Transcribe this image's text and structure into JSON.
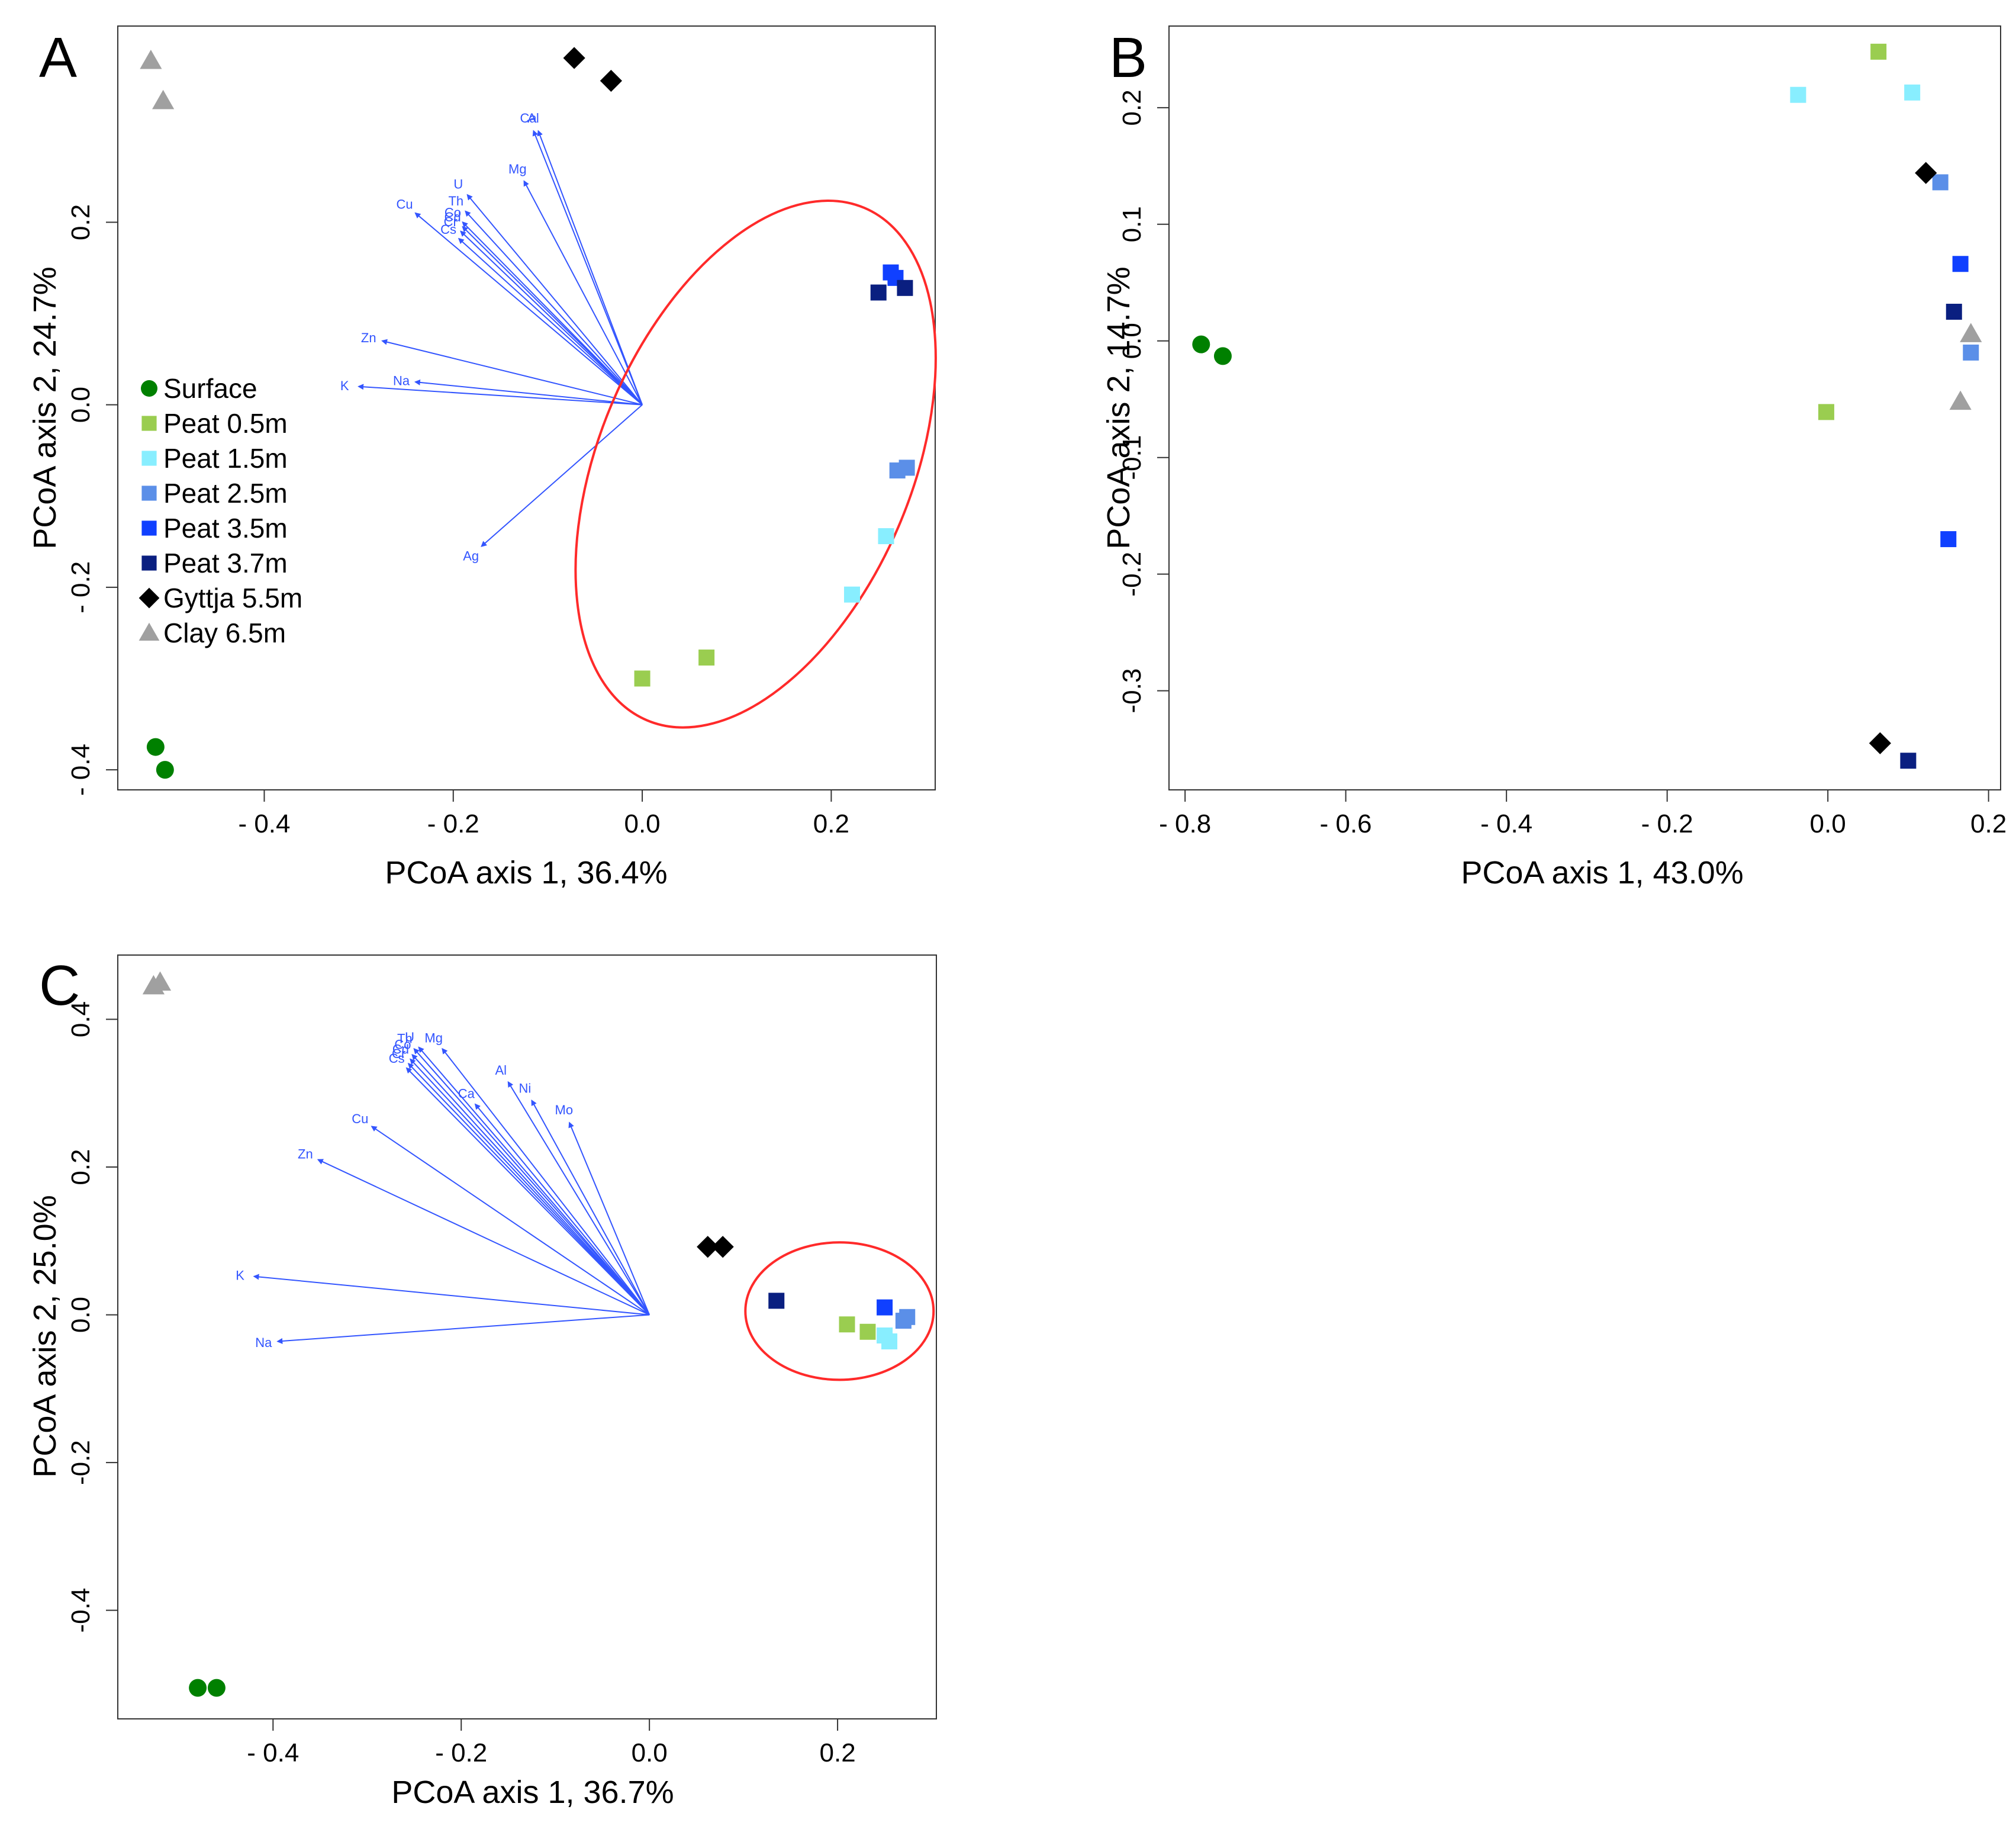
{
  "colors": {
    "Surface": "#008000",
    "Peat 0.5m": "#9acd50",
    "Peat 1.5m": "#88eeff",
    "Peat 2.5m": "#5b8fe8",
    "Peat 3.5m": "#1040ff",
    "Peat 3.7m": "#0a1f80",
    "Gyttja 5.5m": "#000000",
    "Clay 6.5m": "#a0a0a0",
    "vector": "#3355ff",
    "ellipse": "#ff2a2a",
    "axis": "#333333"
  },
  "legend": {
    "entries": [
      {
        "label": "Surface",
        "shape": "circle"
      },
      {
        "label": "Peat 0.5m",
        "shape": "square"
      },
      {
        "label": "Peat 1.5m",
        "shape": "square"
      },
      {
        "label": "Peat 2.5m",
        "shape": "square"
      },
      {
        "label": "Peat 3.5m",
        "shape": "square"
      },
      {
        "label": "Peat 3.7m",
        "shape": "square"
      },
      {
        "label": "Gyttja 5.5m",
        "shape": "diamond"
      },
      {
        "label": "Clay 6.5m",
        "shape": "triangle"
      }
    ]
  },
  "chart_data": [
    {
      "panel": "A",
      "type": "scatter",
      "xlabel": "PCoA axis 1, 36.4%",
      "ylabel": "PCoA axis 2, 24.7%",
      "xlim": [
        -0.555,
        0.31
      ],
      "ylim": [
        -0.422,
        0.415
      ],
      "xticks": [
        {
          "v": -0.4,
          "label": "- 0.4"
        },
        {
          "v": -0.2,
          "label": "- 0.2"
        },
        {
          "v": 0.0,
          "label": "0.0"
        },
        {
          "v": 0.2,
          "label": "0.2"
        }
      ],
      "yticks": [
        {
          "v": -0.4,
          "label": "- 0.4"
        },
        {
          "v": -0.2,
          "label": "- 0.2"
        },
        {
          "v": 0.0,
          "label": "0.0"
        },
        {
          "v": 0.2,
          "label": "0.2"
        }
      ],
      "points": [
        {
          "group": "Surface",
          "x": -0.515,
          "y": -0.375
        },
        {
          "group": "Surface",
          "x": -0.505,
          "y": -0.4
        },
        {
          "group": "Peat 0.5m",
          "x": 0.0,
          "y": -0.3
        },
        {
          "group": "Peat 0.5m",
          "x": 0.068,
          "y": -0.277
        },
        {
          "group": "Peat 1.5m",
          "x": 0.222,
          "y": -0.208
        },
        {
          "group": "Peat 1.5m",
          "x": 0.258,
          "y": -0.144
        },
        {
          "group": "Peat 2.5m",
          "x": 0.27,
          "y": -0.072
        },
        {
          "group": "Peat 2.5m",
          "x": 0.28,
          "y": -0.069
        },
        {
          "group": "Peat 3.5m",
          "x": 0.263,
          "y": 0.145
        },
        {
          "group": "Peat 3.5m",
          "x": 0.268,
          "y": 0.139
        },
        {
          "group": "Peat 3.7m",
          "x": 0.25,
          "y": 0.123
        },
        {
          "group": "Peat 3.7m",
          "x": 0.278,
          "y": 0.128
        },
        {
          "group": "Gyttja 5.5m",
          "x": -0.072,
          "y": 0.38
        },
        {
          "group": "Gyttja 5.5m",
          "x": -0.033,
          "y": 0.355
        },
        {
          "group": "Clay 6.5m",
          "x": -0.52,
          "y": 0.377
        },
        {
          "group": "Clay 6.5m",
          "x": -0.507,
          "y": 0.333
        }
      ],
      "ellipse": {
        "cx": 0.12,
        "cy": -0.065,
        "rx": 0.165,
        "ry": 0.305,
        "angle": 23
      },
      "vectors": [
        {
          "label": "Al",
          "x": -0.11,
          "y": 0.3
        },
        {
          "label": "Ca",
          "x": -0.115,
          "y": 0.3
        },
        {
          "label": "Mg",
          "x": -0.125,
          "y": 0.245
        },
        {
          "label": "U",
          "x": -0.185,
          "y": 0.23
        },
        {
          "label": "Th",
          "x": -0.187,
          "y": 0.212
        },
        {
          "label": "Co",
          "x": -0.19,
          "y": 0.2
        },
        {
          "label": "Cd",
          "x": -0.19,
          "y": 0.195
        },
        {
          "label": "Cr",
          "x": -0.192,
          "y": 0.19
        },
        {
          "label": "Cs",
          "x": -0.194,
          "y": 0.182
        },
        {
          "label": "Cu",
          "x": -0.24,
          "y": 0.21
        },
        {
          "label": "Zn",
          "x": -0.275,
          "y": 0.07
        },
        {
          "label": "Na",
          "x": -0.24,
          "y": 0.025
        },
        {
          "label": "K",
          "x": -0.3,
          "y": 0.02
        },
        {
          "label": "Ag",
          "x": -0.17,
          "y": -0.155
        }
      ]
    },
    {
      "panel": "B",
      "type": "scatter",
      "xlabel": "PCoA axis 1, 43.0%",
      "ylabel": "PCoA axis 2, 14.7%",
      "xlim": [
        -0.82,
        0.215
      ],
      "ylim": [
        -0.385,
        0.27
      ],
      "xticks": [
        {
          "v": -0.8,
          "label": "- 0.8"
        },
        {
          "v": -0.6,
          "label": "- 0.6"
        },
        {
          "v": -0.4,
          "label": "- 0.4"
        },
        {
          "v": -0.2,
          "label": "- 0.2"
        },
        {
          "v": 0.0,
          "label": "0.0"
        },
        {
          "v": 0.2,
          "label": "0.2"
        }
      ],
      "yticks": [
        {
          "v": -0.3,
          "label": "-0.3"
        },
        {
          "v": -0.2,
          "label": "-0.2"
        },
        {
          "v": -0.1,
          "label": "-0.1"
        },
        {
          "v": 0.0,
          "label": "0.0"
        },
        {
          "v": 0.1,
          "label": "0.1"
        },
        {
          "v": 0.2,
          "label": "0.2"
        }
      ],
      "points": [
        {
          "group": "Surface",
          "x": -0.78,
          "y": -0.003
        },
        {
          "group": "Surface",
          "x": -0.753,
          "y": -0.013
        },
        {
          "group": "Peat 0.5m",
          "x": 0.063,
          "y": 0.248
        },
        {
          "group": "Peat 0.5m",
          "x": -0.002,
          "y": -0.061
        },
        {
          "group": "Peat 1.5m",
          "x": -0.037,
          "y": 0.211
        },
        {
          "group": "Peat 1.5m",
          "x": 0.105,
          "y": 0.213
        },
        {
          "group": "Peat 2.5m",
          "x": 0.14,
          "y": 0.136
        },
        {
          "group": "Peat 2.5m",
          "x": 0.178,
          "y": -0.01
        },
        {
          "group": "Peat 3.5m",
          "x": 0.165,
          "y": 0.066
        },
        {
          "group": "Peat 3.5m",
          "x": 0.15,
          "y": -0.17
        },
        {
          "group": "Peat 3.7m",
          "x": 0.157,
          "y": 0.025
        },
        {
          "group": "Peat 3.7m",
          "x": 0.1,
          "y": -0.36
        },
        {
          "group": "Gyttja 5.5m",
          "x": 0.122,
          "y": 0.144
        },
        {
          "group": "Gyttja 5.5m",
          "x": 0.065,
          "y": -0.345
        },
        {
          "group": "Clay 6.5m",
          "x": 0.178,
          "y": 0.006
        },
        {
          "group": "Clay 6.5m",
          "x": 0.165,
          "y": -0.052
        }
      ]
    },
    {
      "panel": "C",
      "type": "scatter",
      "xlabel": "PCoA axis 1, 36.7%",
      "ylabel": "PCoA axis 2, 25.0%",
      "xlim": [
        -0.565,
        0.305
      ],
      "ylim": [
        -0.547,
        0.487
      ],
      "xticks": [
        {
          "v": -0.4,
          "label": "- 0.4"
        },
        {
          "v": -0.2,
          "label": "- 0.2"
        },
        {
          "v": 0.0,
          "label": "0.0"
        },
        {
          "v": 0.2,
          "label": "0.2"
        }
      ],
      "yticks": [
        {
          "v": -0.4,
          "label": "-0.4"
        },
        {
          "v": -0.2,
          "label": "-0.2"
        },
        {
          "v": 0.0,
          "label": "0.0"
        },
        {
          "v": 0.2,
          "label": "0.2"
        },
        {
          "v": 0.4,
          "label": "0.4"
        }
      ],
      "points": [
        {
          "group": "Surface",
          "x": -0.48,
          "y": -0.505
        },
        {
          "group": "Surface",
          "x": -0.46,
          "y": -0.505
        },
        {
          "group": "Peat 0.5m",
          "x": 0.21,
          "y": -0.013
        },
        {
          "group": "Peat 0.5m",
          "x": 0.232,
          "y": -0.023
        },
        {
          "group": "Peat 1.5m",
          "x": 0.25,
          "y": -0.028
        },
        {
          "group": "Peat 1.5m",
          "x": 0.255,
          "y": -0.036
        },
        {
          "group": "Peat 2.5m",
          "x": 0.27,
          "y": -0.008
        },
        {
          "group": "Peat 2.5m",
          "x": 0.274,
          "y": -0.003
        },
        {
          "group": "Peat 3.5m",
          "x": 0.25,
          "y": 0.01
        },
        {
          "group": "Peat 3.7m",
          "x": 0.135,
          "y": 0.019
        },
        {
          "group": "Gyttja 5.5m",
          "x": 0.062,
          "y": 0.092
        },
        {
          "group": "Gyttja 5.5m",
          "x": 0.078,
          "y": 0.092
        },
        {
          "group": "Clay 6.5m",
          "x": -0.527,
          "y": 0.445
        },
        {
          "group": "Clay 6.5m",
          "x": -0.52,
          "y": 0.45
        }
      ],
      "ellipse": {
        "cx": 0.202,
        "cy": 0.005,
        "rx": 0.1,
        "ry": 0.093,
        "angle": 0
      },
      "vectors": [
        {
          "label": "Mg",
          "x": -0.22,
          "y": 0.36
        },
        {
          "label": "U",
          "x": -0.245,
          "y": 0.362
        },
        {
          "label": "Th",
          "x": -0.25,
          "y": 0.36
        },
        {
          "label": "Co",
          "x": -0.252,
          "y": 0.352
        },
        {
          "label": "Cd",
          "x": -0.254,
          "y": 0.346
        },
        {
          "label": "Cr",
          "x": -0.256,
          "y": 0.34
        },
        {
          "label": "Cs",
          "x": -0.258,
          "y": 0.334
        },
        {
          "label": "Ca",
          "x": -0.185,
          "y": 0.285
        },
        {
          "label": "Al",
          "x": -0.15,
          "y": 0.315
        },
        {
          "label": "Ni",
          "x": -0.125,
          "y": 0.29
        },
        {
          "label": "Mo",
          "x": -0.085,
          "y": 0.26
        },
        {
          "label": "Cu",
          "x": -0.295,
          "y": 0.255
        },
        {
          "label": "Zn",
          "x": -0.352,
          "y": 0.21
        },
        {
          "label": "K",
          "x": -0.42,
          "y": 0.052
        },
        {
          "label": "Na",
          "x": -0.395,
          "y": -0.036
        }
      ]
    }
  ]
}
